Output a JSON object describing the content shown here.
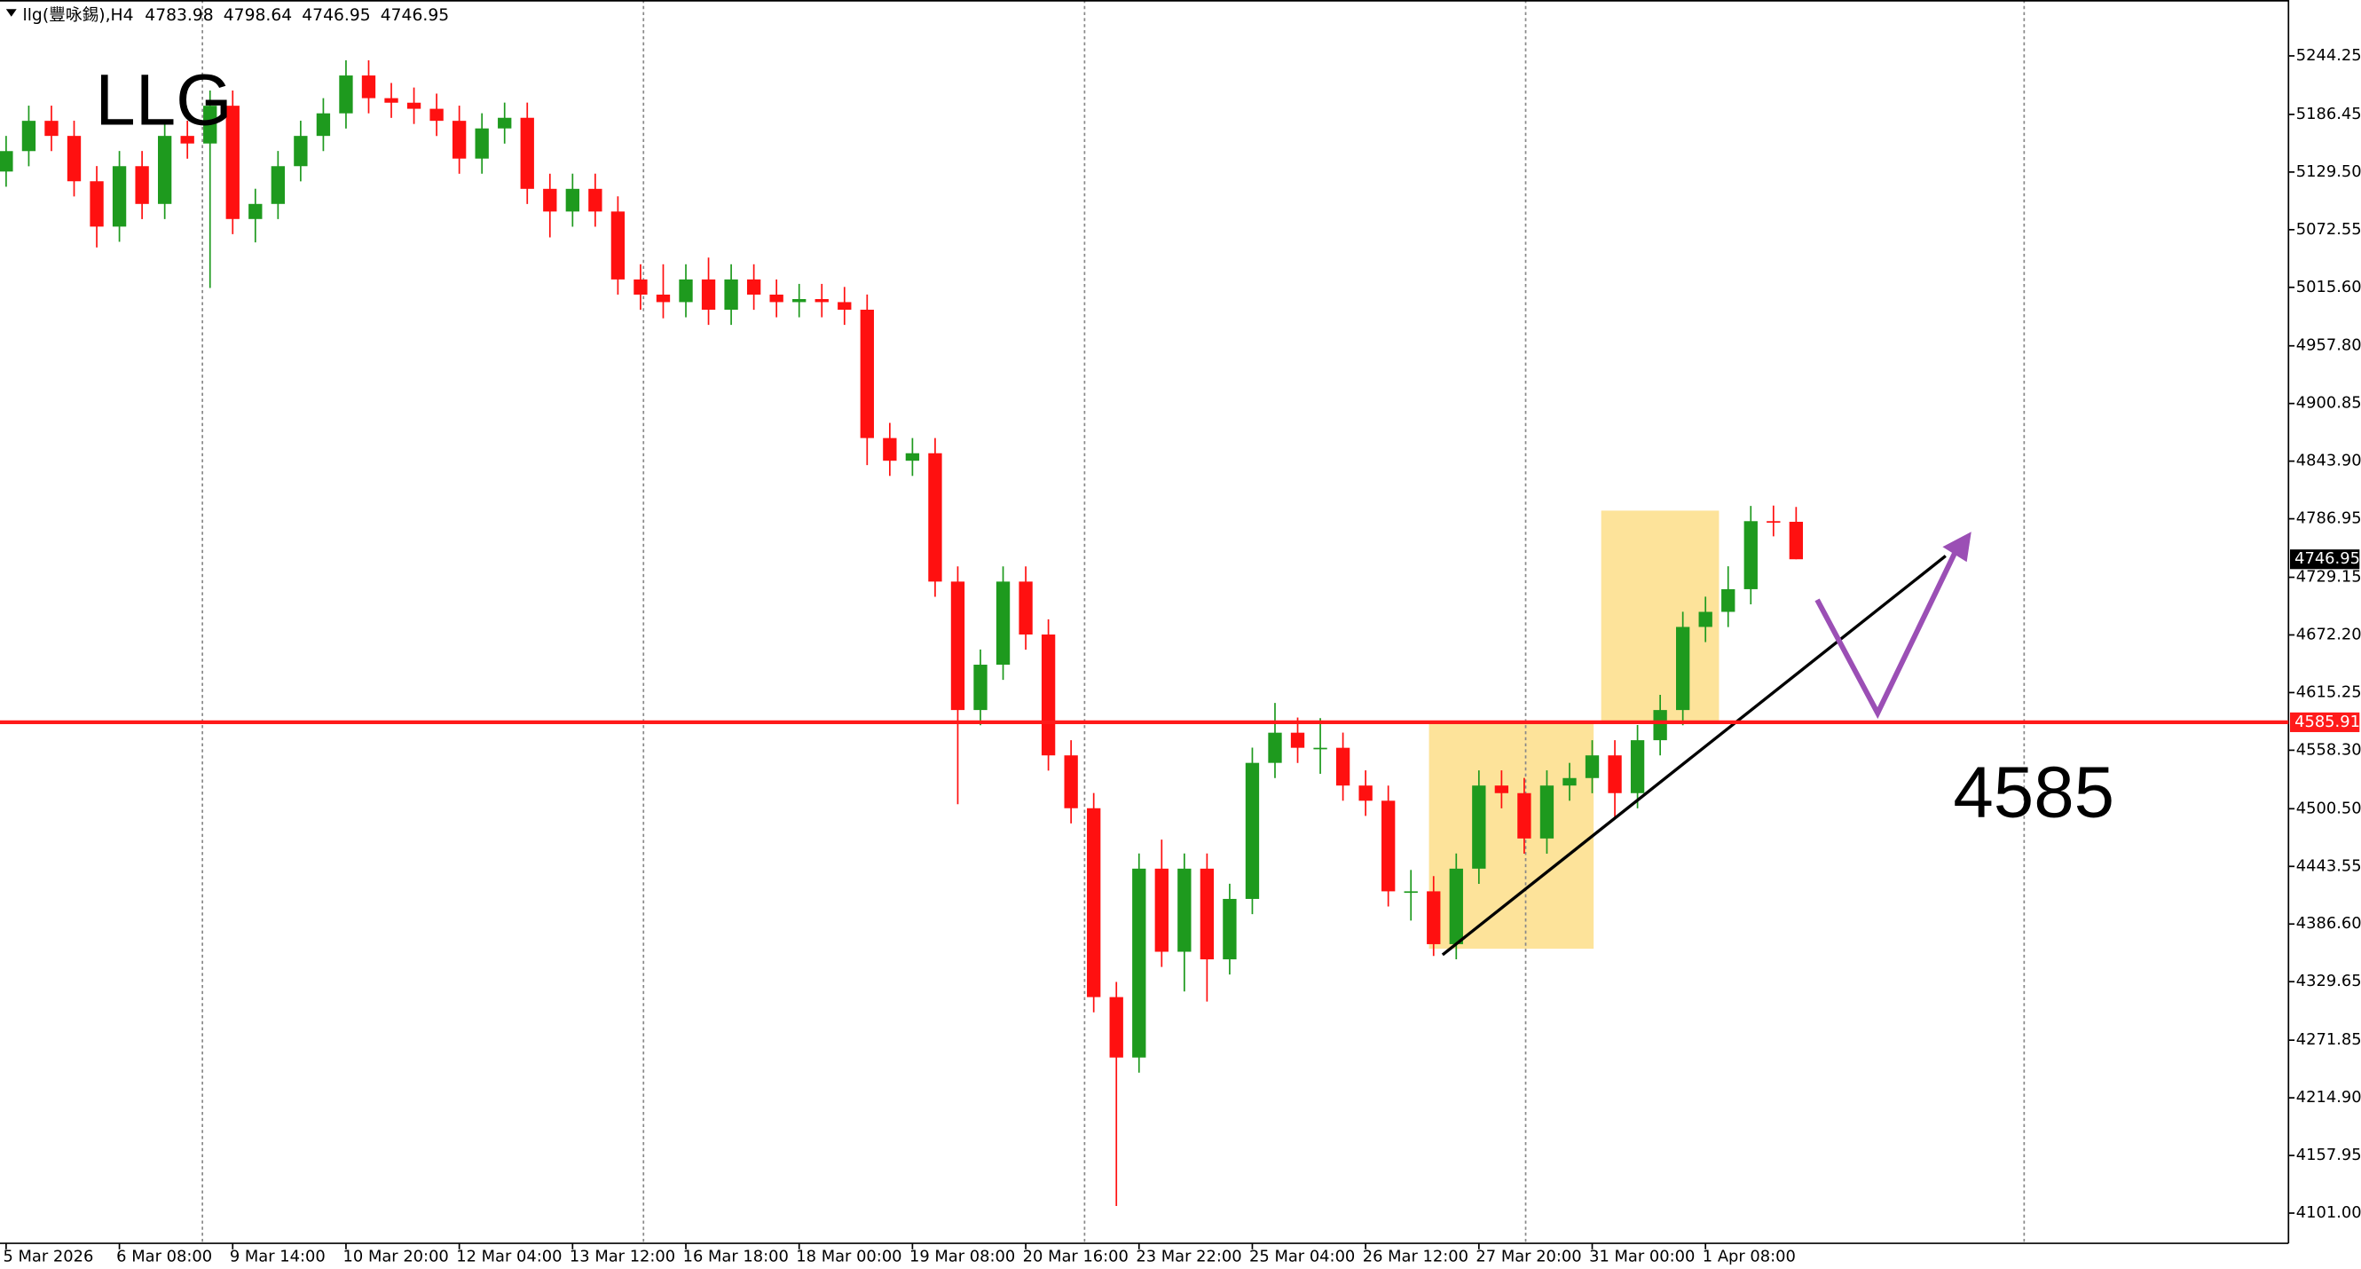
{
  "chart_data": {
    "type": "candlestick",
    "symbol": "llg(豐咏錫),H4",
    "title": "LLG",
    "annotation": "4585",
    "open": [
      5130,
      5150.2,
      5180.1,
      5165.2,
      5120.4,
      5075.6,
      5135.3,
      5098.0,
      5165.2,
      5157.7,
      5195.0,
      5083.1,
      5098.0,
      5135.3,
      5165.2,
      5187.5,
      5224.9,
      5202.5,
      5198.0,
      5192.0,
      5180.1,
      5142.8,
      5172.6,
      5183.1,
      5112.9,
      5090.5,
      5112.9,
      5090.5,
      5023.4,
      5008.4,
      5001.0,
      5023.4,
      4993.5,
      5023.4,
      5008.4,
      5001.0,
      5004.0,
      5001.0,
      4993.5,
      4866.7,
      4844.3,
      4851.7,
      4724.9,
      4598.0,
      4642.8,
      4724.9,
      4672.6,
      4553.2,
      4501.0,
      4314.4,
      4254.7,
      4441.3,
      4359.2,
      4441.3,
      4351.7,
      4411.4,
      4545.8,
      4575.6,
      4560.7,
      4560.7,
      4523.4,
      4508.4,
      4418.9,
      4418.9,
      4366.7,
      4441.3,
      4523.4,
      4515.9,
      4471.1,
      4523.4,
      4530.8,
      4553.2,
      4515.9,
      4568.2,
      4598.0,
      4680.1,
      4695.0,
      4717.4,
      4784.6,
      4783.98
    ],
    "high": [
      5165.2,
      5195.1,
      5195.1,
      5180.2,
      5135.4,
      5150.3,
      5150.3,
      5180.2,
      5180.2,
      5210.0,
      5210.0,
      5113.0,
      5150.3,
      5180.2,
      5202.5,
      5239.9,
      5239.9,
      5217.5,
      5213.0,
      5207.0,
      5195.1,
      5187.6,
      5198.1,
      5198.1,
      5127.9,
      5127.9,
      5127.9,
      5105.5,
      5038.4,
      5038.4,
      5038.4,
      5045.0,
      5038.4,
      5038.4,
      5023.4,
      5019.0,
      5019.0,
      5016.0,
      5008.5,
      4881.7,
      4866.7,
      4866.7,
      4739.9,
      4657.8,
      4739.9,
      4739.9,
      4687.6,
      4568.2,
      4516.0,
      4329.4,
      4456.3,
      4470.0,
      4456.3,
      4456.3,
      4426.4,
      4560.8,
      4605.0,
      4590.6,
      4590.0,
      4575.7,
      4538.4,
      4523.4,
      4440.0,
      4433.9,
      4456.3,
      4538.4,
      4538.4,
      4530.9,
      4538.4,
      4545.8,
      4568.2,
      4568.2,
      4583.2,
      4613.0,
      4695.1,
      4710.0,
      4740.0,
      4799.6,
      4800.0,
      4798.64
    ],
    "low": [
      5115.0,
      5135.2,
      5150.2,
      5105.4,
      5055.0,
      5060.6,
      5083.0,
      5083.0,
      5142.7,
      5015.0,
      5068.1,
      5060.0,
      5083.0,
      5120.3,
      5150.2,
      5172.5,
      5187.5,
      5183.0,
      5177.0,
      5165.1,
      5127.8,
      5127.8,
      5157.6,
      5097.9,
      5065.0,
      5075.5,
      5075.5,
      5008.4,
      4993.4,
      4985.0,
      4986.0,
      4978.5,
      4978.5,
      4993.4,
      4986.0,
      4986.0,
      4986.0,
      4978.5,
      4840.0,
      4829.3,
      4829.3,
      4709.9,
      4505.0,
      4583.0,
      4627.8,
      4657.6,
      4538.2,
      4486.0,
      4299.4,
      4108.0,
      4239.7,
      4344.2,
      4320.0,
      4310.0,
      4336.7,
      4396.4,
      4530.8,
      4545.7,
      4535.0,
      4508.4,
      4493.4,
      4403.9,
      4390.0,
      4355.0,
      4351.7,
      4426.3,
      4500.9,
      4456.1,
      4456.1,
      4508.4,
      4515.8,
      4490.0,
      4500.9,
      4553.2,
      4583.0,
      4665.1,
      4680.0,
      4702.4,
      4769.6,
      4746.95
    ],
    "close": [
      5150.2,
      5180.1,
      5165.2,
      5120.4,
      5075.6,
      5135.3,
      5098.0,
      5165.2,
      5157.7,
      5195.0,
      5083.1,
      5098.0,
      5135.3,
      5165.2,
      5187.5,
      5224.9,
      5202.5,
      5198.0,
      5192.0,
      5180.1,
      5142.8,
      5172.6,
      5183.1,
      5112.9,
      5090.5,
      5112.9,
      5090.5,
      5023.4,
      5008.4,
      5001.0,
      5023.4,
      4993.5,
      5023.4,
      5008.4,
      5001.0,
      5004.0,
      5001.0,
      4993.5,
      4866.7,
      4844.3,
      4851.7,
      4724.9,
      4598.0,
      4642.8,
      4724.9,
      4672.6,
      4553.2,
      4501.0,
      4314.4,
      4254.7,
      4441.3,
      4359.2,
      4441.3,
      4351.7,
      4411.4,
      4545.8,
      4575.6,
      4560.7,
      4560.7,
      4523.4,
      4508.4,
      4418.9,
      4418.9,
      4366.7,
      4441.3,
      4523.4,
      4515.9,
      4471.1,
      4523.4,
      4530.8,
      4553.2,
      4515.9,
      4568.2,
      4598.0,
      4680.1,
      4695.0,
      4717.4,
      4784.6,
      4783.98,
      4746.95
    ],
    "xlim": [
      -0.27,
      100.73
    ],
    "xticks": [
      {
        "value": 0,
        "label": "5 Mar 2026"
      },
      {
        "value": 5,
        "label": "6 Mar 08:00"
      },
      {
        "value": 10,
        "label": "9 Mar 14:00"
      },
      {
        "value": 15,
        "label": "10 Mar 20:00"
      },
      {
        "value": 20,
        "label": "12 Mar 04:00"
      },
      {
        "value": 25,
        "label": "13 Mar 12:00"
      },
      {
        "value": 30,
        "label": "16 Mar 18:00"
      },
      {
        "value": 35,
        "label": "18 Mar 00:00"
      },
      {
        "value": 40,
        "label": "19 Mar 08:00"
      },
      {
        "value": 45,
        "label": "20 Mar 16:00"
      },
      {
        "value": 50,
        "label": "23 Mar 22:00"
      },
      {
        "value": 55,
        "label": "25 Mar 04:00"
      },
      {
        "value": 60,
        "label": "26 Mar 12:00"
      },
      {
        "value": 65,
        "label": "27 Mar 20:00"
      },
      {
        "value": 70,
        "label": "31 Mar 00:00"
      },
      {
        "value": 75,
        "label": "1 Apr 08:00"
      }
    ],
    "ylim": [
      4071.15,
      5299.47
    ],
    "yticks": [
      5244.25,
      5186.45,
      {
        "value": 5129.5,
        "label": "5129.50"
      },
      5072.55,
      {
        "value": 5015.6,
        "label": "5015.60"
      },
      {
        "value": 4957.8,
        "label": "4957.80"
      },
      4900.85,
      {
        "value": 4843.9,
        "label": "4843.90"
      },
      4786.95,
      4729.15,
      {
        "value": 4672.2,
        "label": "4672.20"
      },
      4615.25,
      {
        "value": 4558.3,
        "label": "4558.30"
      },
      {
        "value": 4500.5,
        "label": "4500.50"
      },
      4443.55,
      {
        "value": 4386.6,
        "label": "4386.60"
      },
      4329.65,
      4271.85,
      {
        "value": 4214.9,
        "label": "4214.90"
      },
      4157.95,
      {
        "value": 4101,
        "label": "4101.00"
      }
    ],
    "level": 4585.91,
    "level_color": "#ff1a1a",
    "up_color": "#1e9a1e",
    "down_color": "#ff1010"
  }
}
